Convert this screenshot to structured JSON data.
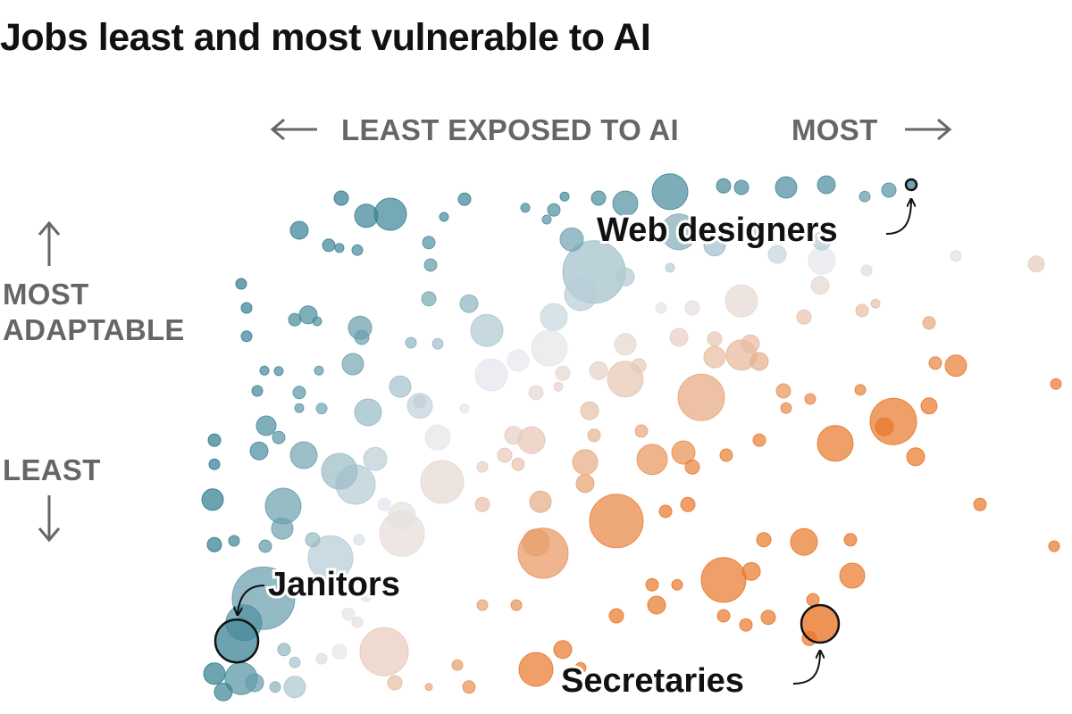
{
  "chart_data": {
    "type": "scatter",
    "title": "Jobs least and most vulnerable to AI",
    "x_axis": {
      "low_label": "LEAST EXPOSED TO AI",
      "high_label": "MOST"
    },
    "y_axis": {
      "high_label": "MOST ADAPTABLE",
      "low_label": "LEAST"
    },
    "xlim": [
      0,
      100
    ],
    "ylim": [
      0,
      100
    ],
    "grid": false,
    "legend": "none",
    "colors": {
      "least_vulnerable": "#2a7a8c",
      "neutral": "#e6e8ee",
      "most_vulnerable": "#e8782a"
    },
    "point_fields": [
      "exposure",
      "adaptability",
      "size"
    ],
    "annotations": [
      {
        "label": "Web designers",
        "point": [
          79,
          95.5,
          6
        ]
      },
      {
        "label": "Janitors",
        "point": [
          3.5,
          10.3,
          24
        ]
      },
      {
        "label": "Secretaries",
        "point": [
          68.8,
          13.5,
          21
        ]
      }
    ],
    "points": [
      [
        52,
        94.2,
        20
      ],
      [
        65,
        95,
        12
      ],
      [
        69.5,
        95.5,
        10
      ],
      [
        58,
        95.3,
        8
      ],
      [
        60,
        95,
        8
      ],
      [
        76.5,
        94.5,
        8
      ],
      [
        73.8,
        93.3,
        6
      ],
      [
        47,
        92,
        14
      ],
      [
        44,
        93,
        8
      ],
      [
        29,
        92.8,
        7
      ],
      [
        40.2,
        93.3,
        5
      ],
      [
        20.7,
        90,
        18
      ],
      [
        18,
        89.7,
        13
      ],
      [
        15.2,
        93,
        8
      ],
      [
        10.5,
        87,
        10
      ],
      [
        26.7,
        89.5,
        5
      ],
      [
        35.8,
        91.2,
        5
      ],
      [
        39,
        90.8,
        7
      ],
      [
        38.2,
        89,
        5
      ],
      [
        41,
        85.3,
        13
      ],
      [
        53,
        86.7,
        20
      ],
      [
        57,
        84.2,
        12
      ],
      [
        62,
        86.3,
        8
      ],
      [
        69,
        85,
        10
      ],
      [
        64,
        82.5,
        10
      ],
      [
        69,
        81.3,
        15
      ],
      [
        84,
        82.2,
        6
      ],
      [
        93,
        80.7,
        9
      ],
      [
        43.5,
        79.2,
        35
      ],
      [
        42,
        75,
        18
      ],
      [
        39,
        70.8,
        15
      ],
      [
        47,
        78.3,
        10
      ],
      [
        52,
        80,
        5
      ],
      [
        60,
        73.8,
        18
      ],
      [
        68.8,
        76.7,
        10
      ],
      [
        74,
        79.5,
        6
      ],
      [
        73.5,
        72,
        7
      ],
      [
        81,
        69.7,
        7
      ],
      [
        75,
        73.3,
        5
      ],
      [
        67,
        70.8,
        8
      ],
      [
        54.5,
        72.5,
        8
      ],
      [
        51,
        72.5,
        6
      ],
      [
        53,
        67,
        10
      ],
      [
        47,
        65.7,
        12
      ],
      [
        38.5,
        65,
        20
      ],
      [
        31.5,
        68.3,
        18
      ],
      [
        29.5,
        73.3,
        10
      ],
      [
        25,
        74.2,
        8
      ],
      [
        17.3,
        68.8,
        13
      ],
      [
        17.5,
        67,
        8
      ],
      [
        11.5,
        71.2,
        10
      ],
      [
        10,
        70.3,
        7
      ],
      [
        4,
        77,
        6
      ],
      [
        4.6,
        72.5,
        6
      ],
      [
        4.6,
        67.2,
        6
      ],
      [
        12.5,
        70,
        5
      ],
      [
        13.8,
        84.2,
        7
      ],
      [
        15,
        83.7,
        5
      ],
      [
        17,
        83.3,
        6
      ],
      [
        25,
        84.7,
        7
      ],
      [
        25.2,
        80.5,
        7
      ],
      [
        23,
        66,
        6
      ],
      [
        26,
        65.8,
        6
      ],
      [
        16.5,
        62,
        12
      ],
      [
        12.7,
        60.8,
        5
      ],
      [
        6.6,
        60.8,
        5
      ],
      [
        8.2,
        60.7,
        5
      ],
      [
        5.8,
        57,
        6
      ],
      [
        10.5,
        56.7,
        7
      ],
      [
        21.8,
        57.8,
        12
      ],
      [
        24,
        54.2,
        14
      ],
      [
        18.2,
        53,
        15
      ],
      [
        13,
        53.7,
        6
      ],
      [
        10.5,
        53.8,
        5
      ],
      [
        6.8,
        50.5,
        11
      ],
      [
        8.2,
        48.3,
        7
      ],
      [
        1,
        47.8,
        7
      ],
      [
        6,
        45.8,
        10
      ],
      [
        11,
        45,
        15
      ],
      [
        15,
        42,
        20
      ],
      [
        16.8,
        39.5,
        22
      ],
      [
        19,
        44.3,
        13
      ],
      [
        26.5,
        40,
        24
      ],
      [
        26,
        48.3,
        14
      ],
      [
        24,
        55,
        7
      ],
      [
        29,
        53.7,
        5
      ],
      [
        32,
        60,
        18
      ],
      [
        35,
        62.7,
        12
      ],
      [
        40,
        60.3,
        8
      ],
      [
        37,
        56.7,
        8
      ],
      [
        39.5,
        57.8,
        5
      ],
      [
        44,
        60.8,
        10
      ],
      [
        47,
        59.2,
        20
      ],
      [
        48.5,
        61.7,
        8
      ],
      [
        57,
        63.3,
        12
      ],
      [
        60,
        63.7,
        17
      ],
      [
        62,
        62.5,
        10
      ],
      [
        61,
        65.8,
        10
      ],
      [
        57,
        66.7,
        8
      ],
      [
        55.5,
        55.8,
        26
      ],
      [
        64.7,
        57,
        8
      ],
      [
        65,
        53.8,
        6
      ],
      [
        67.7,
        55.5,
        6
      ],
      [
        73.3,
        57.2,
        6
      ],
      [
        84,
        61.7,
        12
      ],
      [
        81.7,
        62.2,
        7
      ],
      [
        77,
        51.3,
        26
      ],
      [
        76,
        50.3,
        10
      ],
      [
        81,
        54.2,
        9
      ],
      [
        95.2,
        58.3,
        6
      ],
      [
        43,
        53.3,
        10
      ],
      [
        36.5,
        47.8,
        15
      ],
      [
        34.5,
        48.7,
        10
      ],
      [
        35,
        43.3,
        7
      ],
      [
        33.5,
        45,
        8
      ],
      [
        31,
        42.8,
        6
      ],
      [
        42.5,
        43.7,
        14
      ],
      [
        42.5,
        39.7,
        10
      ],
      [
        43.5,
        48.7,
        7
      ],
      [
        50,
        44.2,
        17
      ],
      [
        48.8,
        49.5,
        7
      ],
      [
        53.5,
        45.5,
        13
      ],
      [
        54.5,
        42.8,
        8
      ],
      [
        58.3,
        45,
        7
      ],
      [
        62,
        47.8,
        7
      ],
      [
        70.5,
        47.2,
        20
      ],
      [
        79.5,
        44.7,
        10
      ],
      [
        1,
        43.3,
        6
      ],
      [
        0.8,
        36.7,
        12
      ],
      [
        8.7,
        35.5,
        20
      ],
      [
        8.6,
        31.3,
        12
      ],
      [
        20,
        35.8,
        7
      ],
      [
        22,
        33.7,
        15
      ],
      [
        22,
        30.3,
        25
      ],
      [
        31,
        35.8,
        8
      ],
      [
        37.5,
        36.3,
        12
      ],
      [
        46,
        32.7,
        30
      ],
      [
        51.5,
        34.5,
        7
      ],
      [
        54,
        35.8,
        8
      ],
      [
        86.7,
        35.8,
        7
      ],
      [
        1,
        28.3,
        8
      ],
      [
        3.2,
        29,
        6
      ],
      [
        6.7,
        28,
        7
      ],
      [
        12,
        29.2,
        8
      ],
      [
        14,
        25.8,
        25
      ],
      [
        17.2,
        29.2,
        6
      ],
      [
        37,
        28.7,
        15
      ],
      [
        37.8,
        26.7,
        28
      ],
      [
        58,
        21.7,
        25
      ],
      [
        61.1,
        23.3,
        10
      ],
      [
        62.5,
        29.2,
        8
      ],
      [
        67,
        28.8,
        15
      ],
      [
        72.2,
        29.2,
        7
      ],
      [
        72.4,
        22.5,
        14
      ],
      [
        95,
        28,
        6
      ],
      [
        50,
        20.8,
        7
      ],
      [
        52.8,
        20.8,
        6
      ],
      [
        6.5,
        18.3,
        35
      ],
      [
        4.3,
        13.7,
        20
      ],
      [
        18,
        18.7,
        6
      ],
      [
        16,
        15.3,
        7
      ],
      [
        17,
        13.8,
        6
      ],
      [
        31,
        17,
        6
      ],
      [
        34.8,
        17,
        6
      ],
      [
        20,
        8.3,
        27
      ],
      [
        15,
        8.3,
        8
      ],
      [
        13,
        7,
        6
      ],
      [
        10,
        6.3,
        6
      ],
      [
        8.8,
        8.7,
        7
      ],
      [
        4,
        3.3,
        18
      ],
      [
        1,
        4.2,
        12
      ],
      [
        2,
        0.8,
        10
      ],
      [
        10,
        1.7,
        12
      ],
      [
        7.8,
        1.7,
        6
      ],
      [
        5.5,
        2.5,
        10
      ],
      [
        37,
        5,
        19
      ],
      [
        40,
        8.7,
        10
      ],
      [
        42,
        5.3,
        6
      ],
      [
        46,
        15,
        8
      ],
      [
        50.5,
        17,
        10
      ],
      [
        58,
        15,
        7
      ],
      [
        60.5,
        13.3,
        7
      ],
      [
        68,
        18,
        7
      ],
      [
        67.6,
        10.8,
        8
      ],
      [
        63,
        14.7,
        8
      ],
      [
        21.2,
        2.5,
        8
      ],
      [
        28.2,
        5.8,
        6
      ],
      [
        29.5,
        1.7,
        7
      ],
      [
        25,
        1.7,
        4
      ],
      [
        59,
        2.5,
        5
      ]
    ]
  }
}
